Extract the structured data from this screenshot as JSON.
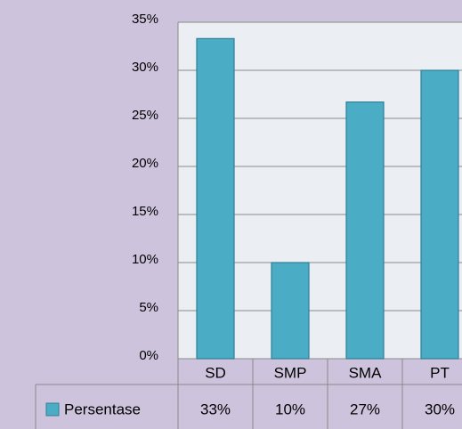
{
  "chart_data": {
    "type": "bar",
    "categories": [
      "SD",
      "SMP",
      "SMA",
      "PT"
    ],
    "series": [
      {
        "name": "Persentase",
        "color": "#4bacc6",
        "values": [
          33.3,
          10,
          26.7,
          30
        ],
        "value_labels": [
          "33%",
          "10%",
          "27%",
          "30%"
        ]
      }
    ],
    "ylim": [
      0,
      35
    ],
    "yticks": [
      {
        "value": 0,
        "label": "0%"
      },
      {
        "value": 5,
        "label": "5%"
      },
      {
        "value": 10,
        "label": "10%"
      },
      {
        "value": 15,
        "label": "15%"
      },
      {
        "value": 20,
        "label": "20%"
      },
      {
        "value": 25,
        "label": "25%"
      },
      {
        "value": 30,
        "label": "30%"
      },
      {
        "value": 35,
        "label": "35%"
      }
    ],
    "grid": true,
    "data_table": true
  }
}
